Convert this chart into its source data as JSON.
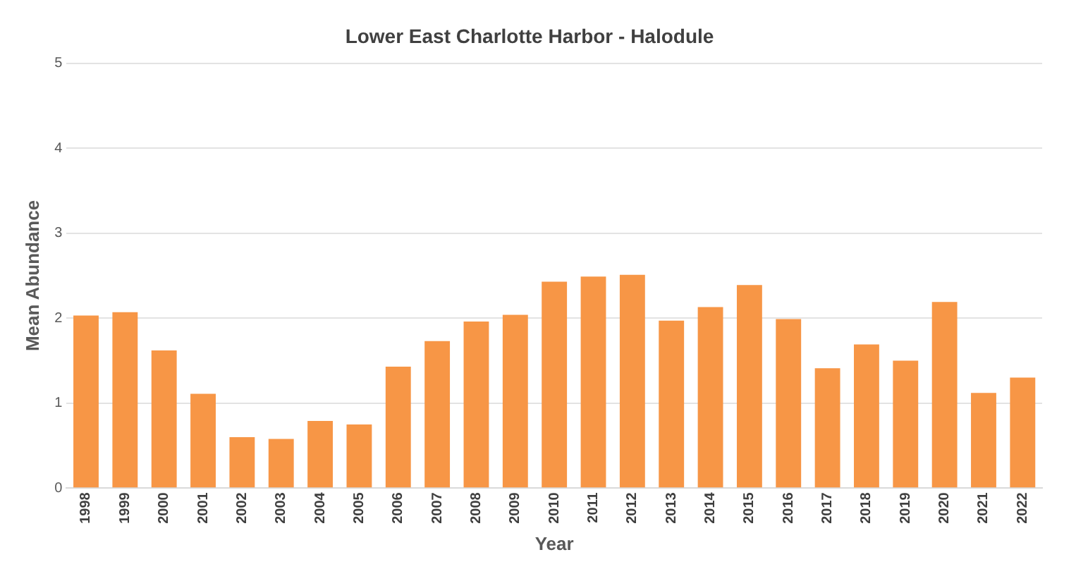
{
  "chart_data": {
    "type": "bar",
    "title": "Lower East Charlotte Harbor - Halodule",
    "xlabel": "Year",
    "ylabel": "Mean Abundance",
    "categories": [
      "1998",
      "1999",
      "2000",
      "2001",
      "2002",
      "2003",
      "2004",
      "2005",
      "2006",
      "2007",
      "2008",
      "2009",
      "2010",
      "2011",
      "2012",
      "2013",
      "2014",
      "2015",
      "2016",
      "2017",
      "2018",
      "2019",
      "2020",
      "2021",
      "2022"
    ],
    "values": [
      2.03,
      2.07,
      1.62,
      1.11,
      0.6,
      0.58,
      0.79,
      0.75,
      1.43,
      1.73,
      1.96,
      2.04,
      2.43,
      2.49,
      2.51,
      1.97,
      2.13,
      2.39,
      1.99,
      1.41,
      1.69,
      1.5,
      2.19,
      1.12,
      1.3
    ],
    "color": "#f79646",
    "ylim": [
      0,
      5
    ],
    "yticks": [
      0,
      1,
      2,
      3,
      4,
      5
    ],
    "grid": "y",
    "legend": false
  }
}
